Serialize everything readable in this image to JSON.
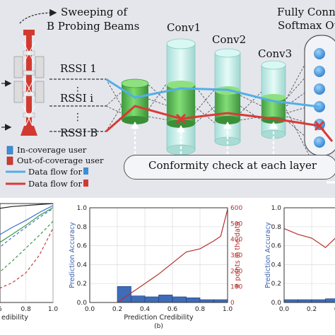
{
  "diagram": {
    "sweep_label_line1": "Sweeping of",
    "sweep_label_line2": "B Probing Beams",
    "rssi_labels": [
      "RSSI 1",
      "RSSI i",
      "RSSI B"
    ],
    "layers": [
      "Conv1",
      "Conv2",
      "Conv3"
    ],
    "output_label_line1": "Fully Conne",
    "output_label_line2": "Softmax Ou",
    "legend": {
      "in_coverage": "In-coverage user",
      "out_coverage": "Out-of-coverage user",
      "flow_in": "Data flow for",
      "flow_out": "Data flow for"
    },
    "conformity_label": "Conformity check at each layer",
    "colors": {
      "in_flow": "#53aee8",
      "out_flow": "#d93a36",
      "cylinder_green": "#5cc05a",
      "cylinder_glass": "#bfeee8",
      "node_blue": "#3b9be0"
    }
  },
  "panel_a": {
    "xlabel": "edibility",
    "tick_labels_x": [
      ".6",
      "0.8",
      "1.0"
    ]
  },
  "panel_b": {
    "xlabel": "Prediction Credibility",
    "ylabel_left": "Prediction Accuracy",
    "ylabel_right": "# points in the data",
    "caption": "(b)"
  },
  "panel_c": {
    "ylabel_left": "Prediction Accuracy",
    "tick_labels_y": [
      "1.0",
      "0.8",
      "0.6",
      "0.4",
      "0.2",
      "0.0"
    ],
    "tick_labels_x": [
      "0.0",
      "0.2",
      "0.4"
    ]
  },
  "chart_data": [
    {
      "type": "line",
      "panel": "a",
      "series": [
        {
          "color": "#3a6fd0",
          "style": "solid",
          "x": [
            0.5,
            0.6,
            0.7,
            0.8,
            0.9,
            1.0
          ],
          "y": [
            0.6,
            0.68,
            0.76,
            0.83,
            0.91,
            0.98
          ]
        },
        {
          "color": "#3a6fd0",
          "style": "dashed",
          "x": [
            0.5,
            0.6,
            0.7,
            0.8,
            0.9,
            1.0
          ],
          "y": [
            0.45,
            0.55,
            0.66,
            0.76,
            0.86,
            0.95
          ]
        },
        {
          "color": "#3a9a46",
          "style": "solid",
          "x": [
            0.5,
            0.6,
            0.7,
            0.8,
            0.9,
            1.0
          ],
          "y": [
            0.5,
            0.6,
            0.69,
            0.78,
            0.88,
            0.96
          ]
        },
        {
          "color": "#3a9a46",
          "style": "dashed",
          "x": [
            0.5,
            0.6,
            0.7,
            0.8,
            0.9,
            1.0
          ],
          "y": [
            0.2,
            0.3,
            0.42,
            0.55,
            0.68,
            0.82
          ]
        },
        {
          "color": "#c04040",
          "style": "dashed",
          "x": [
            0.5,
            0.6,
            0.7,
            0.8,
            0.9,
            1.0
          ],
          "y": [
            0.1,
            0.14,
            0.2,
            0.3,
            0.48,
            0.75
          ]
        },
        {
          "color": "#222222",
          "style": "solid",
          "x": [
            0.5,
            0.6,
            0.7,
            0.8,
            0.9,
            1.0
          ],
          "y": [
            0.93,
            0.95,
            0.97,
            0.98,
            0.99,
            1.0
          ]
        }
      ],
      "xticks": [
        0.6,
        0.8,
        1.0
      ]
    },
    {
      "type": "bar",
      "panel": "b",
      "xlabel": "Prediction Credibility",
      "ylabel": "Prediction Accuracy",
      "ylabel_right": "# points in the data",
      "xlim": [
        0.0,
        1.0
      ],
      "ylim": [
        0.0,
        1.0
      ],
      "ylim_right": [
        0,
        600
      ],
      "xticks": [
        0.0,
        0.2,
        0.4,
        0.6,
        0.8,
        1.0
      ],
      "yticks": [
        0.0,
        0.2,
        0.4,
        0.6,
        0.8,
        1.0
      ],
      "yticks_right": [
        0,
        100,
        200,
        300,
        400,
        500,
        600
      ],
      "bins": [
        {
          "x0": 0.2,
          "x1": 0.3,
          "value": 0.17
        },
        {
          "x0": 0.3,
          "x1": 0.4,
          "value": 0.07
        },
        {
          "x0": 0.4,
          "x1": 0.5,
          "value": 0.06
        },
        {
          "x0": 0.5,
          "x1": 0.6,
          "value": 0.08
        },
        {
          "x0": 0.6,
          "x1": 0.7,
          "value": 0.06
        },
        {
          "x0": 0.7,
          "x1": 0.8,
          "value": 0.05
        },
        {
          "x0": 0.8,
          "x1": 0.9,
          "value": 0.03
        },
        {
          "x0": 0.9,
          "x1": 1.0,
          "value": 0.03
        }
      ],
      "line": {
        "x": [
          0.2,
          0.3,
          0.4,
          0.5,
          0.6,
          0.7,
          0.8,
          0.9,
          0.95,
          1.0
        ],
        "y": [
          0,
          60,
          120,
          180,
          250,
          320,
          340,
          390,
          420,
          590
        ]
      },
      "grid": true
    },
    {
      "type": "bar",
      "panel": "c",
      "ylabel": "Prediction Accuracy",
      "ylim": [
        0.0,
        1.0
      ],
      "xticks": [
        0.0,
        0.2,
        0.4
      ],
      "yticks": [
        0.0,
        0.2,
        0.4,
        0.6,
        0.8,
        1.0
      ],
      "bins": [
        {
          "x0": 0.0,
          "x1": 0.1,
          "value": 0.03
        },
        {
          "x0": 0.1,
          "x1": 0.2,
          "value": 0.03
        },
        {
          "x0": 0.2,
          "x1": 0.3,
          "value": 0.03
        },
        {
          "x0": 0.3,
          "x1": 0.4,
          "value": 0.04
        }
      ],
      "line": {
        "x": [
          0.0,
          0.1,
          0.2,
          0.3,
          0.4,
          0.5
        ],
        "y": [
          0.78,
          0.72,
          0.68,
          0.58,
          0.72,
          0.52
        ]
      },
      "grid": true
    }
  ]
}
